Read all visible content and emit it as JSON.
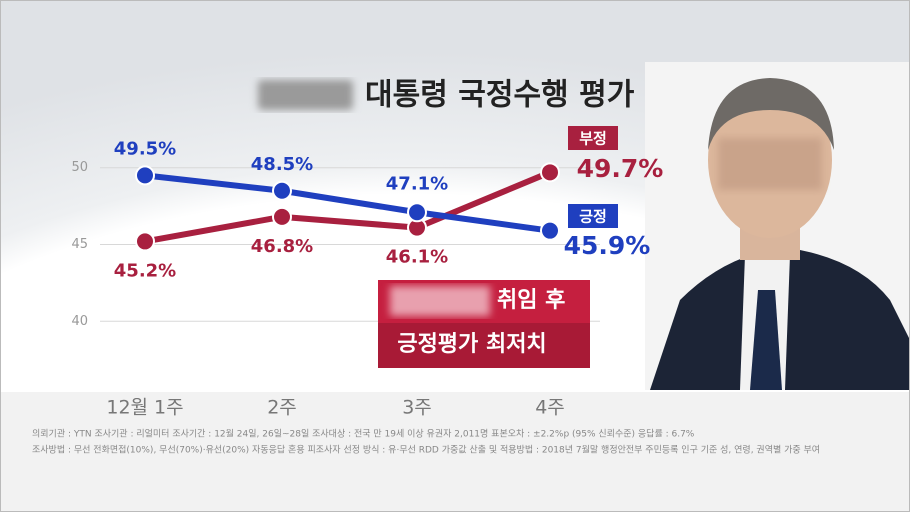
{
  "chart_data": {
    "type": "line",
    "title": "대통령 국정수행 평가",
    "categories": [
      "12월 1주",
      "2주",
      "3주",
      "4주"
    ],
    "series": [
      {
        "name": "부정",
        "color": "#a8203f",
        "values": [
          45.2,
          46.8,
          46.1,
          49.7
        ],
        "value_labels": [
          "45.2%",
          "46.8%",
          "46.1%",
          "49.7%"
        ]
      },
      {
        "name": "긍정",
        "color": "#1f3fbf",
        "values": [
          49.5,
          48.5,
          47.1,
          45.9
        ],
        "value_labels": [
          "49.5%",
          "48.5%",
          "47.1%",
          "45.9%"
        ]
      }
    ],
    "ylim": [
      38,
      52
    ],
    "yticks": [
      40,
      45,
      50
    ],
    "grid": true,
    "annotations": [
      "취임 후",
      "긍정평가 최저치"
    ],
    "footnotes": [
      "의뢰기관 : YTN      조사기관 : 리얼미터      조사기간 : 12월 24일, 26일~28일      조사대상 : 전국 만 19세 이상 유권자 2,011명      표본오차 : ±2.2%p (95% 신뢰수준)      응답률 : 6.7%",
      "조사방법 : 무선 전화면접(10%), 무선(70%)·유선(20%) 자동응답 혼용      피조사자 선정 방식 : 유·무선 RDD      가중값 산출 및 적용방법 : 2018년 7월말 행정안전부 주민등록 인구 기준 성, 연령, 권역별 가중 부여"
    ]
  }
}
